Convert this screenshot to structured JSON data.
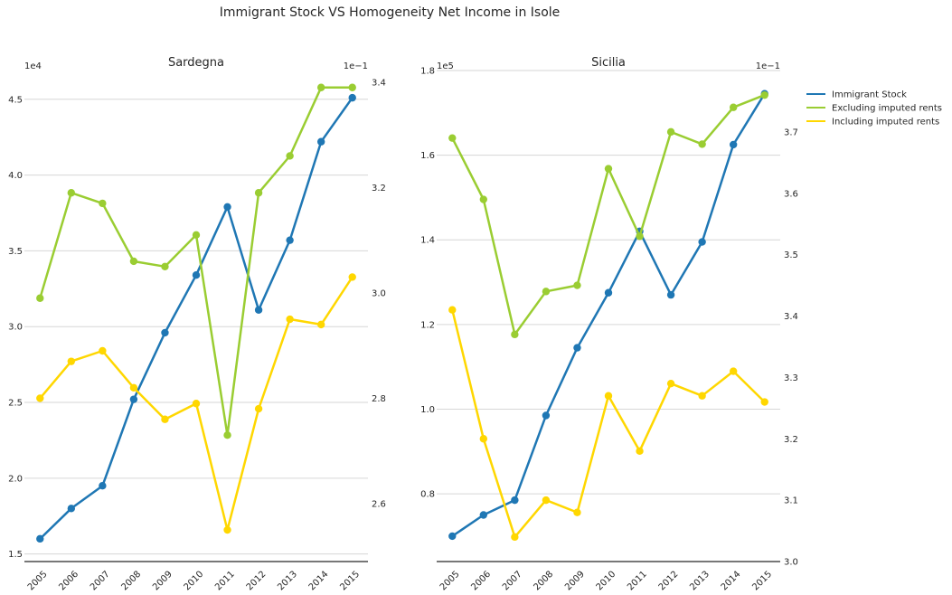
{
  "figure": {
    "title": "Immigrant Stock VS Homogeneity Net Income in Isole"
  },
  "legend": {
    "location": "right",
    "items": [
      {
        "label": "Immigrant Stock",
        "color": "#1f77b4"
      },
      {
        "label": "Excluding imputed rents",
        "color": "#9acd32"
      },
      {
        "label": "Including imputed rents",
        "color": "#ffd700"
      }
    ]
  },
  "chart_data": [
    {
      "type": "line",
      "title": "Sardegna",
      "x": [
        "2005",
        "2006",
        "2007",
        "2008",
        "2009",
        "2010",
        "2011",
        "2012",
        "2013",
        "2014",
        "2015"
      ],
      "left_axis": {
        "offset_label": "1e4",
        "ylim": [
          1.45,
          4.63
        ],
        "ticks": [
          1.5,
          2.0,
          2.5,
          3.0,
          3.5,
          4.0,
          4.5
        ],
        "tick_labels": [
          "1.5",
          "2.0",
          "2.5",
          "3.0",
          "3.5",
          "4.0",
          "4.5"
        ]
      },
      "right_axis": {
        "offset_label": "1e−1",
        "ylim": [
          2.49,
          3.405
        ],
        "ticks": [
          2.6,
          2.8,
          3.0,
          3.2,
          3.4
        ],
        "tick_labels": [
          "2.6",
          "2.8",
          "3.0",
          "3.2",
          "3.4"
        ]
      },
      "grid": true,
      "series": [
        {
          "name": "Immigrant Stock",
          "axis": "left",
          "color": "#1f77b4",
          "values": [
            1.6,
            1.8,
            1.95,
            2.52,
            2.96,
            3.34,
            3.79,
            3.11,
            3.57,
            4.22,
            4.51
          ]
        },
        {
          "name": "Excluding imputed rents",
          "axis": "right",
          "color": "#9acd32",
          "values": [
            2.99,
            3.19,
            3.17,
            3.06,
            3.05,
            3.11,
            2.73,
            3.19,
            3.26,
            3.39,
            3.39
          ]
        },
        {
          "name": "Including imputed rents",
          "axis": "right",
          "color": "#ffd700",
          "values": [
            2.8,
            2.87,
            2.89,
            2.82,
            2.76,
            2.79,
            2.55,
            2.78,
            2.95,
            2.94,
            3.03
          ]
        }
      ]
    },
    {
      "type": "line",
      "title": "Sicilia",
      "x": [
        "2005",
        "2006",
        "2007",
        "2008",
        "2009",
        "2010",
        "2011",
        "2012",
        "2013",
        "2014",
        "2015"
      ],
      "left_axis": {
        "offset_label": "1e5",
        "ylim": [
          0.64,
          1.8
        ],
        "ticks": [
          0.8,
          1.0,
          1.2,
          1.4,
          1.6,
          1.8
        ],
        "tick_labels": [
          "0.8",
          "1.0",
          "1.2",
          "1.4",
          "1.6",
          "1.8"
        ]
      },
      "right_axis": {
        "offset_label": "1e−1",
        "ylim": [
          3.0,
          3.8
        ],
        "ticks": [
          3.0,
          3.1,
          3.2,
          3.3,
          3.4,
          3.5,
          3.6,
          3.7
        ],
        "tick_labels": [
          "3.0",
          "3.1",
          "3.2",
          "3.3",
          "3.4",
          "3.5",
          "3.6",
          "3.7"
        ]
      },
      "grid": true,
      "series": [
        {
          "name": "Immigrant Stock",
          "axis": "left",
          "color": "#1f77b4",
          "values": [
            0.7,
            0.75,
            0.785,
            0.985,
            1.145,
            1.275,
            1.42,
            1.27,
            1.395,
            1.625,
            1.745
          ]
        },
        {
          "name": "Excluding imputed rents",
          "axis": "right",
          "color": "#9acd32",
          "values": [
            3.69,
            3.59,
            3.37,
            3.44,
            3.45,
            3.64,
            3.53,
            3.7,
            3.68,
            3.74,
            3.76
          ]
        },
        {
          "name": "Including imputed rents",
          "axis": "right",
          "color": "#ffd700",
          "values": [
            3.41,
            3.2,
            3.04,
            3.1,
            3.08,
            3.27,
            3.18,
            3.29,
            3.27,
            3.31,
            3.26
          ]
        }
      ]
    }
  ]
}
